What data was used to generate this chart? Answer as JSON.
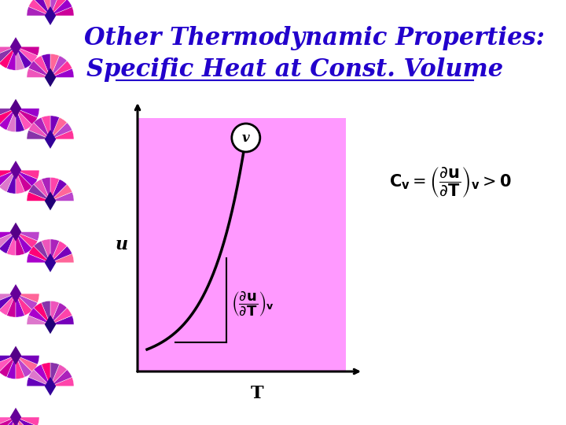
{
  "title_line1": "Other Thermodynamic Properties:",
  "title_line2": "Specific Heat at Const. Volume",
  "title_color": "#2200CC",
  "bg_color": "#FFFFFF",
  "plot_bg_color": "#FF99FF",
  "curve_color": "#000000",
  "axis_color": "#000000",
  "xlabel": "T",
  "ylabel_label": "u",
  "circle_label": "v",
  "spiral_colors": [
    "#CC0099",
    "#9900CC",
    "#FF3399",
    "#BB44CC",
    "#FF6699",
    "#7700BB",
    "#FF44AA",
    "#AA22BB",
    "#EE55BB",
    "#8833AA",
    "#FF0077",
    "#AA00CC",
    "#DD77CC",
    "#6600BB",
    "#FF55BB"
  ],
  "diamond_colors": [
    "#330099",
    "#660099",
    "#220077",
    "#550088"
  ],
  "fig_width": 7.2,
  "fig_height": 5.4,
  "dpi": 100
}
